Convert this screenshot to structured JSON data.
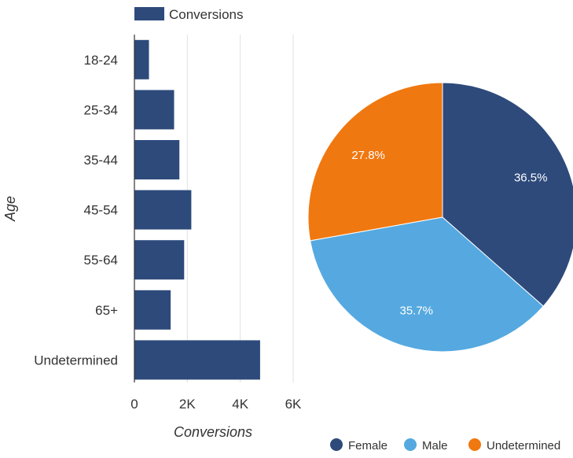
{
  "colors": {
    "bar": "#2d4a7b",
    "grid": "#e0e0e0",
    "axis": "#333333",
    "text": "#333333",
    "female": "#2d4a7b",
    "male": "#55a9e0",
    "undetermined": "#f07810",
    "slice_label": "#ffffff"
  },
  "chart_data": [
    {
      "type": "bar",
      "orientation": "horizontal",
      "categories": [
        "18-24",
        "25-34",
        "35-44",
        "45-54",
        "55-64",
        "65+",
        "Undetermined"
      ],
      "series": [
        {
          "name": "Conversions",
          "values": [
            550,
            1500,
            1700,
            2150,
            1880,
            1370,
            4750
          ]
        }
      ],
      "xlabel": "Conversions",
      "ylabel": "Age",
      "xlim": [
        0,
        6000
      ],
      "xticks": [
        0,
        2000,
        4000,
        6000
      ],
      "xtick_labels": [
        "0",
        "2K",
        "4K",
        "6K"
      ],
      "grid": true,
      "legend": "top"
    },
    {
      "type": "pie",
      "categories": [
        "Female",
        "Male",
        "Undetermined"
      ],
      "values": [
        36.5,
        35.7,
        27.8
      ],
      "labels": [
        "36.5%",
        "35.7%",
        "27.8%"
      ],
      "legend": "bottom-right"
    }
  ]
}
